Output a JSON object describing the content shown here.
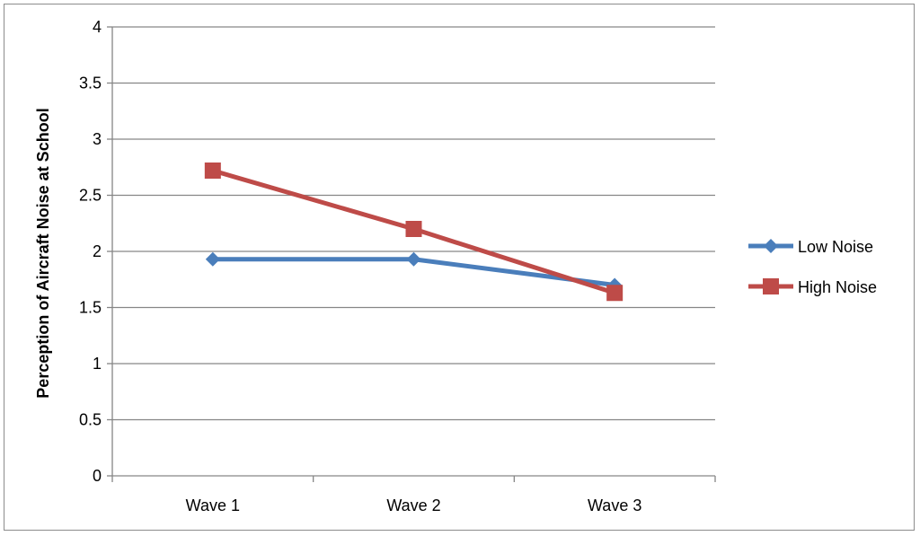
{
  "chart_data": {
    "type": "line",
    "title": "",
    "xlabel": "",
    "ylabel": "Perception of Aircraft Noise at School",
    "categories": [
      "Wave 1",
      "Wave 2",
      "Wave 3"
    ],
    "ylim": [
      0,
      4
    ],
    "yticks": [
      "0",
      "0.5",
      "1",
      "1.5",
      "2",
      "2.5",
      "3",
      "3.5",
      "4"
    ],
    "grid": true,
    "legend_position": "right",
    "series": [
      {
        "name": "Low Noise",
        "values": [
          1.93,
          1.93,
          1.7
        ],
        "color": "#4a7ebb",
        "marker": "diamond"
      },
      {
        "name": "High Noise",
        "values": [
          2.72,
          2.2,
          1.63
        ],
        "color": "#be4b48",
        "marker": "square"
      }
    ]
  }
}
